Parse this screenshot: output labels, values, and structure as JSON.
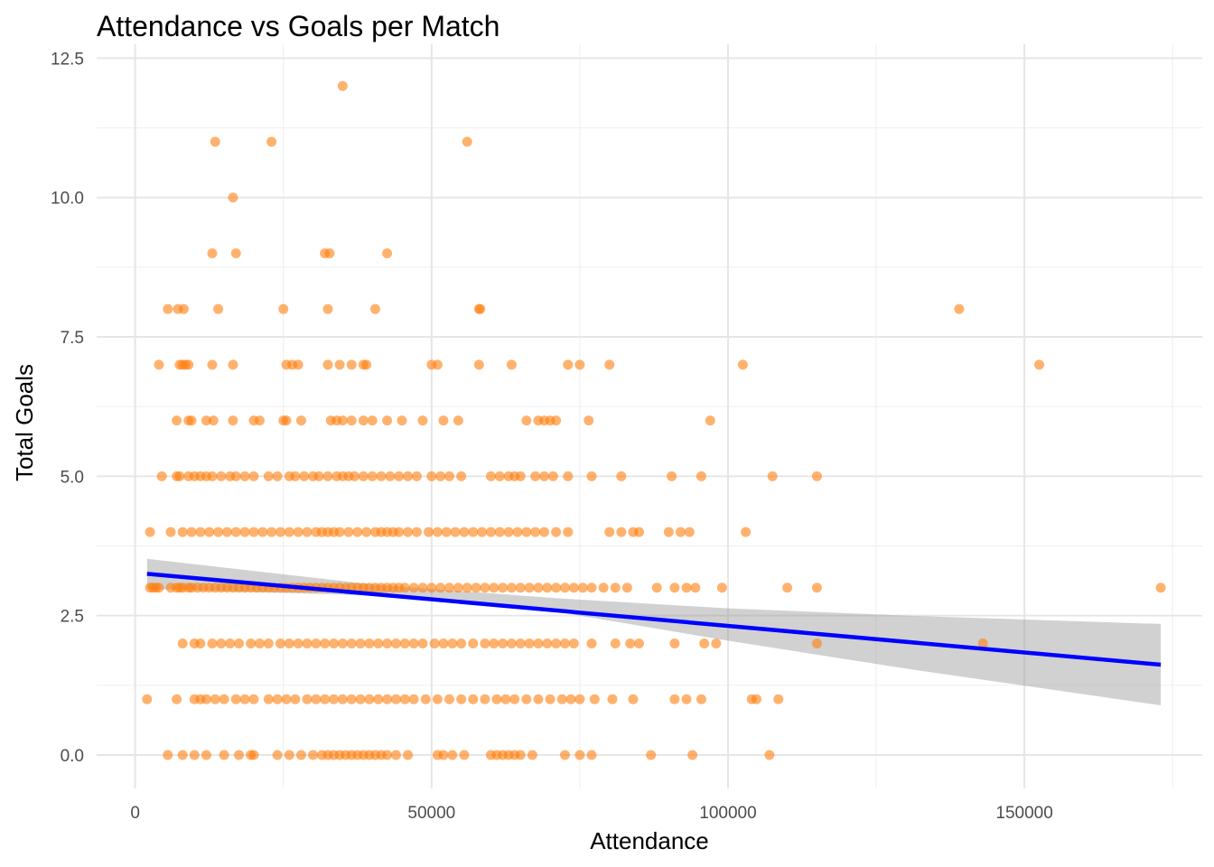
{
  "chart_data": {
    "type": "scatter",
    "title": "Attendance vs Goals per Match",
    "xlabel": "Attendance",
    "ylabel": "Total Goals",
    "xlim": [
      -6500,
      180000
    ],
    "ylim": [
      -0.6,
      12.75
    ],
    "x_ticks": [
      0,
      50000,
      100000,
      150000
    ],
    "x_tick_labels": [
      "0",
      "50000",
      "100000",
      "150000"
    ],
    "y_ticks": [
      0,
      2.5,
      5,
      7.5,
      10,
      12.5
    ],
    "y_tick_labels": [
      "0.0",
      "2.5",
      "5.0",
      "7.5",
      "10.0",
      "12.5"
    ],
    "grid": true,
    "legend": "none",
    "point_color": "#FF7F0E",
    "point_opacity": 0.6,
    "trend_color": "#0000FF",
    "band_color": "#999999",
    "series": [
      {
        "kind": "points",
        "groups": [
          {
            "y": 12,
            "x": [
              35000
            ]
          },
          {
            "y": 11,
            "x": [
              13500,
              23000,
              56000
            ]
          },
          {
            "y": 10,
            "x": [
              16500
            ]
          },
          {
            "y": 9,
            "x": [
              13000,
              17000,
              32000,
              32800,
              42500
            ]
          },
          {
            "y": 8,
            "x": [
              5500,
              7200,
              8200,
              14000,
              25000,
              32500,
              40500,
              58000,
              58200,
              139000
            ]
          },
          {
            "y": 7,
            "x": [
              4000,
              7500,
              8000,
              8500,
              9000,
              13000,
              16500,
              25500,
              26500,
              27500,
              32500,
              34500,
              36500,
              38500,
              39000,
              50000,
              51000,
              58000,
              63500,
              73000,
              75000,
              80000,
              102500,
              152500
            ]
          },
          {
            "y": 6,
            "x": [
              7000,
              9000,
              9500,
              12000,
              13200,
              16500,
              20000,
              21000,
              25000,
              25500,
              28000,
              33000,
              34000,
              35000,
              36500,
              38500,
              40000,
              42500,
              45000,
              48500,
              52000,
              54500,
              66000,
              68000,
              69000,
              70000,
              71000,
              76500,
              97000
            ]
          },
          {
            "y": 5,
            "x": [
              4500,
              7000,
              7500,
              9000,
              10000,
              11000,
              12000,
              13000,
              14500,
              16000,
              17000,
              18500,
              20000,
              22500,
              24000,
              26000,
              27000,
              28500,
              30000,
              31000,
              32500,
              34000,
              35000,
              36000,
              37000,
              38500,
              40000,
              41500,
              43000,
              44500,
              46000,
              47500,
              50000,
              51500,
              53000,
              55000,
              60000,
              61500,
              63000,
              64000,
              65000,
              67500,
              69000,
              70500,
              73000,
              77000,
              82000,
              90500,
              95500,
              107500,
              115000
            ]
          },
          {
            "y": 4,
            "x": [
              2500,
              6000,
              8000,
              9500,
              11000,
              12500,
              14000,
              15500,
              17000,
              18500,
              20000,
              21500,
              23000,
              24500,
              26000,
              27500,
              29000,
              30500,
              31500,
              32500,
              33500,
              34500,
              36000,
              37500,
              39000,
              40500,
              41500,
              42500,
              43500,
              44500,
              46000,
              47500,
              49500,
              51000,
              52500,
              54000,
              55500,
              57000,
              58500,
              60000,
              61500,
              63000,
              64500,
              66000,
              67500,
              69000,
              71000,
              73000,
              80000,
              82000,
              84000,
              85000,
              90000,
              92000,
              93500,
              103000
            ]
          },
          {
            "y": 3,
            "x": [
              2500,
              3000,
              3500,
              4000,
              6000,
              7000,
              7500,
              8000,
              9000,
              9500,
              10500,
              11500,
              12500,
              13500,
              14500,
              15500,
              16500,
              17500,
              18500,
              19500,
              20500,
              21500,
              22500,
              23500,
              24500,
              25500,
              26500,
              27500,
              28500,
              29500,
              30500,
              31500,
              32500,
              33500,
              34500,
              35500,
              36500,
              37500,
              38500,
              39500,
              40500,
              41500,
              42500,
              43500,
              44500,
              45500,
              47000,
              48500,
              50000,
              51500,
              53000,
              54500,
              56000,
              57500,
              59000,
              60500,
              62000,
              63500,
              65000,
              66500,
              68000,
              69500,
              71000,
              72500,
              74000,
              75500,
              77000,
              79000,
              81000,
              83000,
              88000,
              91000,
              93000,
              94500,
              99000,
              110000,
              115000,
              173000
            ]
          },
          {
            "y": 2,
            "x": [
              8000,
              10000,
              11000,
              13000,
              14500,
              16000,
              17500,
              19500,
              21000,
              22500,
              24500,
              26000,
              27500,
              29000,
              30500,
              32000,
              33500,
              35000,
              36500,
              38000,
              39500,
              41000,
              42500,
              44000,
              45500,
              47000,
              48500,
              50500,
              52000,
              53500,
              55000,
              57000,
              59000,
              60500,
              62000,
              63500,
              65000,
              66500,
              68000,
              69500,
              71000,
              72500,
              74000,
              77000,
              81000,
              83500,
              85000,
              91000,
              96000,
              98000,
              115000,
              143000
            ]
          },
          {
            "y": 1,
            "x": [
              2000,
              7000,
              10000,
              11000,
              12000,
              13500,
              15000,
              17000,
              18500,
              20000,
              22500,
              24000,
              25500,
              27000,
              29000,
              30500,
              32000,
              33500,
              35000,
              36500,
              38000,
              39500,
              41000,
              42500,
              44000,
              45500,
              47000,
              49000,
              51000,
              53000,
              55000,
              57000,
              59000,
              61000,
              62500,
              64000,
              66000,
              68000,
              70000,
              72000,
              73500,
              75000,
              77500,
              80500,
              84000,
              91000,
              93000,
              95500,
              104000,
              104800,
              108500
            ]
          },
          {
            "y": 0,
            "x": [
              5500,
              8000,
              10000,
              12000,
              15000,
              17500,
              19500,
              20000,
              24000,
              26000,
              28000,
              30000,
              31500,
              32500,
              33500,
              34500,
              35500,
              36500,
              37500,
              38500,
              39500,
              40500,
              41500,
              42500,
              44000,
              46000,
              51000,
              52000,
              53500,
              55500,
              60000,
              61000,
              62000,
              63000,
              64000,
              65000,
              67000,
              72500,
              75000,
              77000,
              87000,
              94000,
              107000
            ]
          }
        ]
      },
      {
        "kind": "trend",
        "x": [
          2000,
          173000
        ],
        "y": [
          3.25,
          1.62
        ]
      },
      {
        "kind": "confidence_band",
        "x": [
          2000,
          40000,
          70000,
          100000,
          130000,
          173000
        ],
        "upper": [
          3.52,
          3.06,
          2.82,
          2.63,
          2.5,
          2.35
        ],
        "lower": [
          2.98,
          2.86,
          2.59,
          2.05,
          1.55,
          0.89
        ]
      }
    ]
  }
}
